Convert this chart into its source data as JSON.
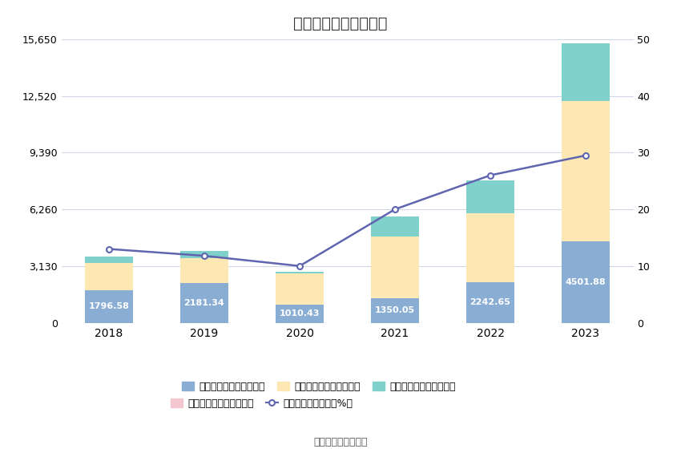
{
  "title": "历年期间费用变化情况",
  "years": [
    "2018",
    "2019",
    "2020",
    "2021",
    "2022",
    "2023"
  ],
  "sales": [
    1796.58,
    2181.34,
    1010.43,
    1350.05,
    2242.65,
    4501.88
  ],
  "management": [
    1500.0,
    1400.0,
    1700.0,
    3400.0,
    3800.0,
    7720.0
  ],
  "finance": [
    350.0,
    380.0,
    100.0,
    1100.0,
    1800.0,
    3200.0
  ],
  "research": [
    0,
    0,
    0,
    0,
    0,
    0
  ],
  "rate": [
    13.0,
    11.8,
    10.0,
    20.0,
    26.0,
    29.5
  ],
  "bar_color_sales": "#8aadd4",
  "bar_color_management": "#fde8b4",
  "bar_color_finance": "#80d0cc",
  "bar_color_research": "#f4c6cf",
  "line_color": "#6065b0",
  "ylim_left": [
    0,
    15650
  ],
  "ylim_right": [
    0,
    50
  ],
  "yticks_left": [
    0,
    3130,
    6260,
    9390,
    12520,
    15650
  ],
  "yticks_right": [
    0,
    10,
    20,
    30,
    40,
    50
  ],
  "source": "数据来源：恒生聚源",
  "legend_row1": [
    {
      "label": "左轴：销售费用（万元）",
      "color": "#8aadd4",
      "type": "bar"
    },
    {
      "label": "左轴：管理费用（万元）",
      "color": "#fde8b4",
      "type": "bar"
    },
    {
      "label": "左轴：财务费用（万元）",
      "color": "#80d0cc",
      "type": "bar"
    }
  ],
  "legend_row2": [
    {
      "label": "左轴：研发费用（万元）",
      "color": "#f4c6cf",
      "type": "bar"
    },
    {
      "label": "右轴：期间费用率（%）",
      "color": "#6065b0",
      "type": "line"
    }
  ],
  "bg_color": "#ffffff",
  "grid_color": "#d0d8e8",
  "bar_width": 0.5,
  "title_fontsize": 14
}
